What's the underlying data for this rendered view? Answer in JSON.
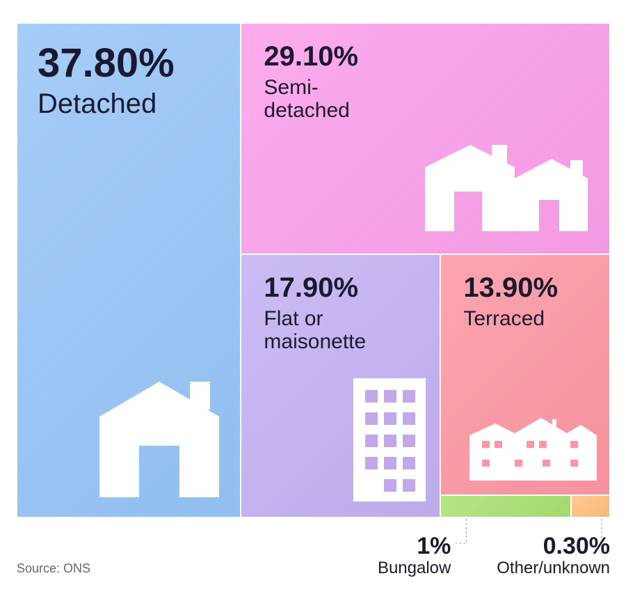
{
  "chart_data": {
    "type": "treemap",
    "items": [
      {
        "label": "Detached",
        "value": 37.8,
        "value_label": "37.80%",
        "color": "#96c4f8"
      },
      {
        "label": "Semi-detached",
        "value": 29.1,
        "value_label": "29.10%",
        "color": "#fb9eea"
      },
      {
        "label": "Flat or maisonette",
        "value": 17.9,
        "value_label": "17.90%",
        "color": "#c3b0f2"
      },
      {
        "label": "Terraced",
        "value": 13.9,
        "value_label": "13.90%",
        "color": "#fd96a2"
      },
      {
        "label": "Bungalow",
        "value": 1,
        "value_label": "1%",
        "color": "#a8e070"
      },
      {
        "label": "Other/unknown",
        "value": 0.3,
        "value_label": "0.30%",
        "color": "#ffc07a"
      }
    ],
    "source": "Source: ONS"
  }
}
